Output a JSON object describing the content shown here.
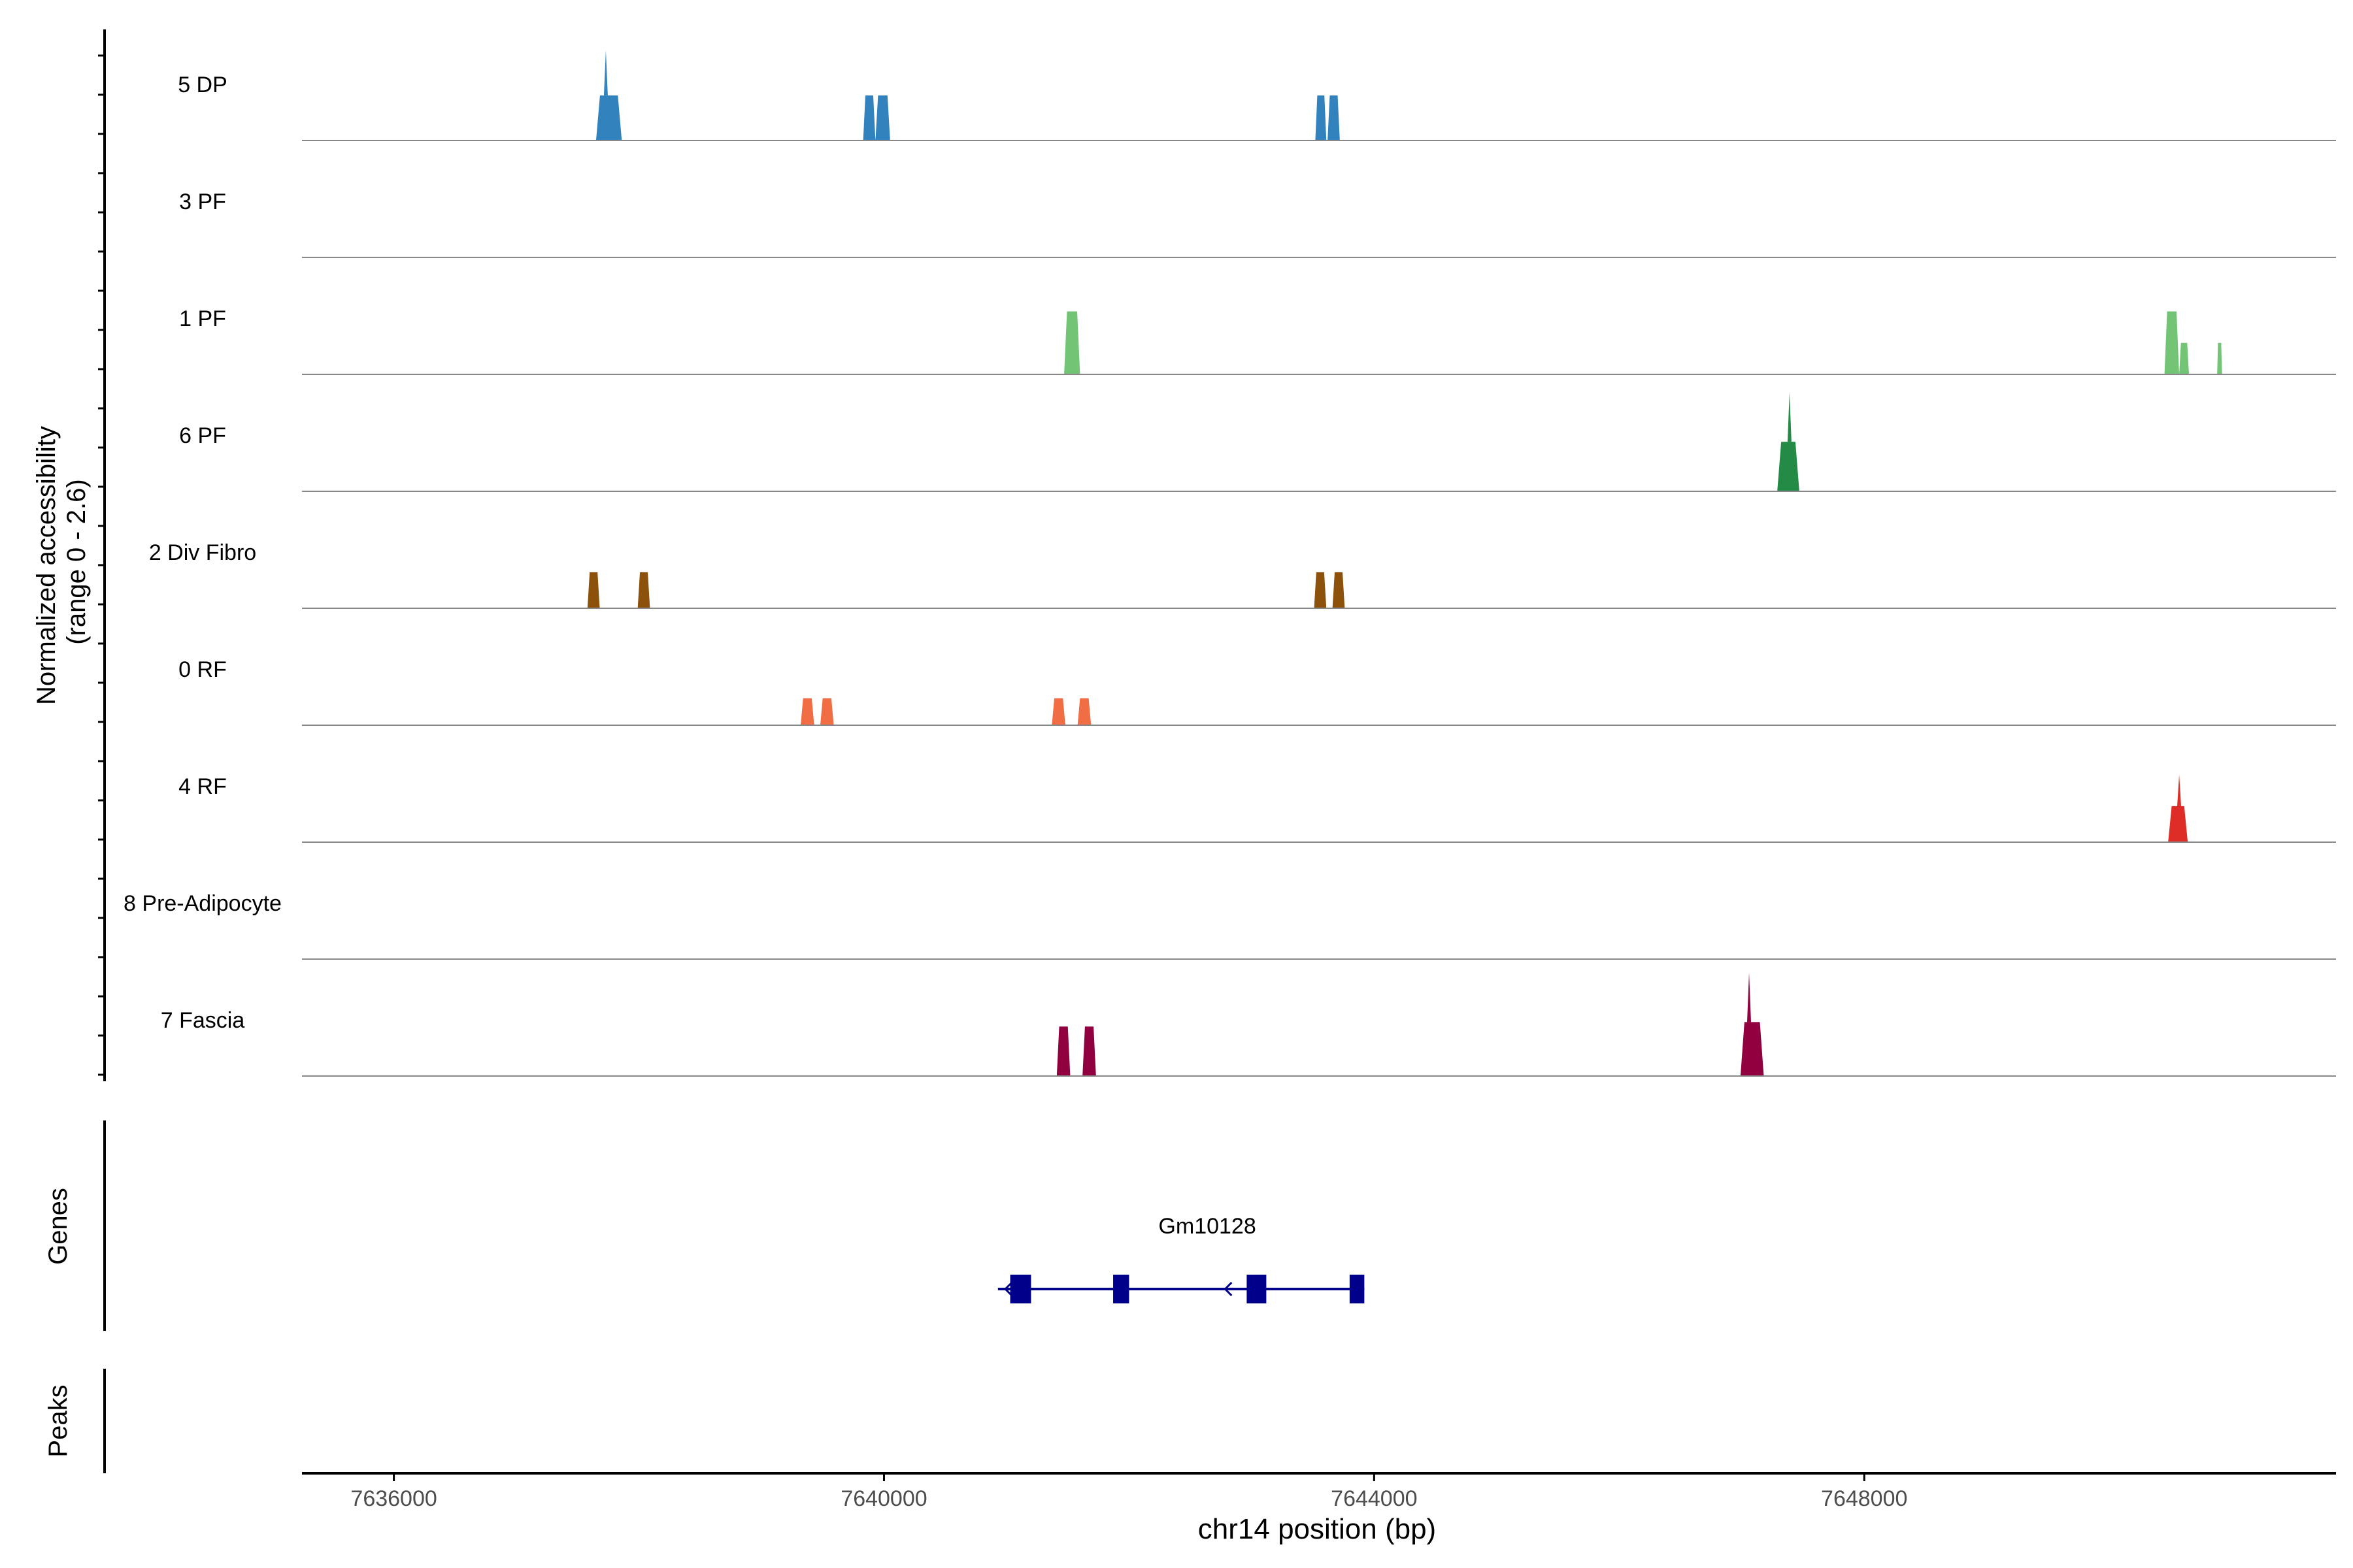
{
  "chart_data": {
    "type": "area",
    "title": "",
    "ylabel_lines": [
      "Normalized accessibility",
      "(range 0 - 2.6)"
    ],
    "ylim": [
      0,
      2.6
    ],
    "xlabel": "chr14 position (bp)",
    "xlim": [
      7635250,
      7651850
    ],
    "xticks": [
      7636000,
      7640000,
      7644000,
      7648000
    ],
    "xtick_labels": [
      "7636000",
      "7640000",
      "7644000",
      "7648000"
    ],
    "tracks": [
      {
        "name": "5 DP",
        "color": "#3182bd",
        "peaks": [
          {
            "start": 7637650,
            "end": 7637860,
            "height": 1.0,
            "spike_at": 7637730,
            "spike_height": 2.0
          },
          {
            "start": 7639830,
            "end": 7639930,
            "height": 1.0
          },
          {
            "start": 7639930,
            "end": 7640050,
            "height": 1.0
          },
          {
            "start": 7643520,
            "end": 7643610,
            "height": 1.0
          },
          {
            "start": 7643620,
            "end": 7643720,
            "height": 1.0
          }
        ]
      },
      {
        "name": "3 PF",
        "color": "#41ab5d",
        "peaks": []
      },
      {
        "name": "1 PF",
        "color": "#74c476",
        "peaks": [
          {
            "start": 7641470,
            "end": 7641600,
            "height": 1.4
          },
          {
            "start": 7650450,
            "end": 7650570,
            "height": 1.4
          },
          {
            "start": 7650570,
            "end": 7650650,
            "height": 0.7
          },
          {
            "start": 7650880,
            "end": 7650920,
            "height": 0.7
          }
        ]
      },
      {
        "name": "6 PF",
        "color": "#238b45",
        "peaks": [
          {
            "start": 7647290,
            "end": 7647470,
            "height": 1.1,
            "spike_at": 7647390,
            "spike_height": 2.2
          }
        ]
      },
      {
        "name": "2 Div Fibro",
        "color": "#8c510a",
        "peaks": [
          {
            "start": 7637580,
            "end": 7637680,
            "height": 0.8
          },
          {
            "start": 7637990,
            "end": 7638090,
            "height": 0.8
          },
          {
            "start": 7643510,
            "end": 7643610,
            "height": 0.8
          },
          {
            "start": 7643660,
            "end": 7643760,
            "height": 0.8
          }
        ]
      },
      {
        "name": "0 RF",
        "color": "#f16d43",
        "peaks": [
          {
            "start": 7639320,
            "end": 7639430,
            "height": 0.6
          },
          {
            "start": 7639480,
            "end": 7639590,
            "height": 0.6
          },
          {
            "start": 7641370,
            "end": 7641480,
            "height": 0.6
          },
          {
            "start": 7641580,
            "end": 7641690,
            "height": 0.6
          }
        ]
      },
      {
        "name": "4 RF",
        "color": "#de2d26",
        "peaks": [
          {
            "start": 7650480,
            "end": 7650640,
            "height": 0.8,
            "spike_at": 7650570,
            "spike_height": 1.5
          }
        ]
      },
      {
        "name": "8 Pre-Adipocyte",
        "color": "#9e9ac8",
        "peaks": []
      },
      {
        "name": "7 Fascia",
        "color": "#91003f",
        "peaks": [
          {
            "start": 7641410,
            "end": 7641520,
            "height": 1.1
          },
          {
            "start": 7641620,
            "end": 7641730,
            "height": 1.1
          },
          {
            "start": 7646990,
            "end": 7647180,
            "height": 1.2,
            "spike_at": 7647060,
            "spike_height": 2.3
          }
        ]
      }
    ],
    "genes": {
      "label": "Genes",
      "color": "#00008b",
      "items": [
        {
          "name": "Gm10128",
          "start": 7640930,
          "end": 7643920,
          "strand": "-",
          "exons": [
            [
              7641030,
              7641200
            ],
            [
              7641870,
              7642000
            ],
            [
              7642960,
              7643120
            ],
            [
              7643800,
              7643920
            ]
          ]
        }
      ]
    },
    "peaks_track": {
      "label": "Peaks"
    }
  }
}
